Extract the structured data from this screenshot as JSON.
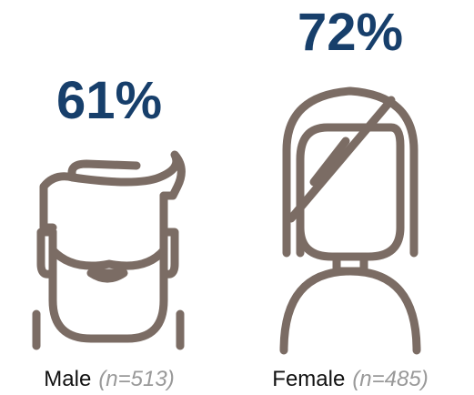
{
  "chart_data": {
    "type": "pictogram",
    "categories": [
      "Male",
      "Female"
    ],
    "values": [
      61,
      72
    ],
    "value_labels": [
      "61%",
      "72%"
    ],
    "sample_labels": [
      "(n=513)",
      "(n=485)"
    ],
    "color": "#173f6b"
  }
}
